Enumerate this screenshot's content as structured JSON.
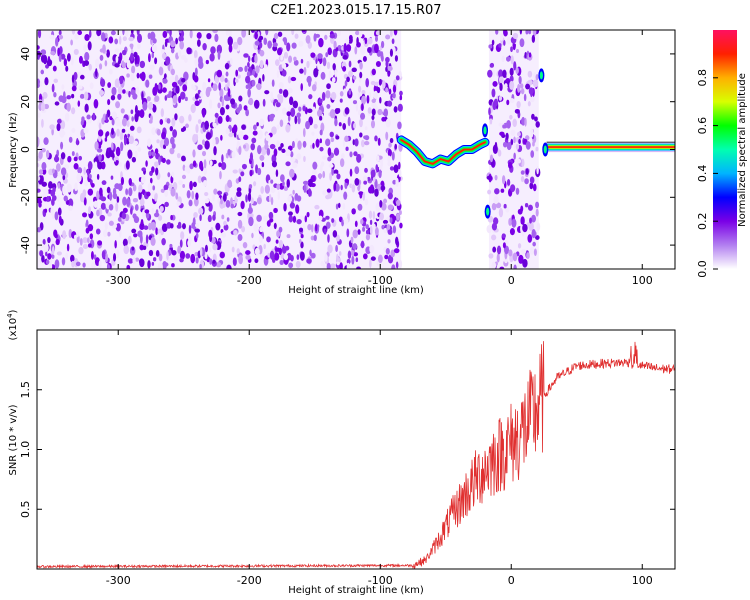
{
  "title": "C2E1.2023.015.17.15.R07",
  "chart_data": [
    {
      "type": "heatmap",
      "xlabel": "Height of straight line (km)",
      "ylabel": "Frequency (Hz)",
      "xlim": [
        -362,
        125
      ],
      "ylim": [
        -50,
        50
      ],
      "x_ticks": [
        -300,
        -200,
        -100,
        0,
        100
      ],
      "y_ticks": [
        -40,
        -20,
        0,
        20,
        40
      ],
      "x_tick_labels": [
        "-300",
        "-200",
        "-100",
        "0",
        "100"
      ],
      "y_tick_labels": [
        "-40",
        "-20",
        "0",
        "20",
        "40"
      ],
      "noise_regions": [
        [
          -362,
          -84
        ],
        [
          -17,
          21
        ]
      ],
      "signal_track": {
        "x": [
          -84,
          -78,
          -72,
          -66,
          -60,
          -54,
          -48,
          -42,
          -36,
          -30,
          -24,
          -20
        ],
        "freq": [
          4,
          2,
          -1,
          -5,
          -6,
          -4,
          -5,
          -2,
          0,
          0,
          2,
          3
        ]
      },
      "signal_spikes": [
        {
          "x": -20,
          "freq": 8
        },
        {
          "x": -18,
          "freq": -26
        },
        {
          "x": 23,
          "freq": 31
        },
        {
          "x": 26,
          "freq": 0
        }
      ],
      "carrier_band": {
        "x": [
          27,
          125
        ],
        "freq": 1
      },
      "colorbar": {
        "label": "Normalized spectral amplitude",
        "range": [
          0,
          1
        ],
        "ticks": [
          0.0,
          0.2,
          0.4,
          0.6,
          0.8
        ],
        "tick_labels": [
          "0.0",
          "0.2",
          "0.4",
          "0.6",
          "0.8"
        ],
        "colors": [
          "#ffffff",
          "#b27ff0",
          "#7a00e6",
          "#0000ff",
          "#00b4ff",
          "#00ffb0",
          "#00ff00",
          "#d8ff00",
          "#ffb000",
          "#ff2000",
          "#ff1060"
        ]
      }
    },
    {
      "type": "line",
      "xlabel": "Height of straight line (km)",
      "ylabel": "SNR (10 * v/v)",
      "y_scale_label": "(x10",
      "y_scale_exponent": "4",
      "xlim": [
        -362,
        125
      ],
      "ylim": [
        0,
        2.0
      ],
      "x_ticks": [
        -300,
        -200,
        -100,
        0,
        100
      ],
      "y_ticks": [
        0.5,
        1.0,
        1.5
      ],
      "x_tick_labels": [
        "-300",
        "-200",
        "-100",
        "0",
        "100"
      ],
      "y_tick_labels": [
        "0.5",
        "1.0",
        "1.5"
      ],
      "series_color": "#e03030",
      "trend": {
        "x": [
          -362,
          -75,
          -65,
          -55,
          -45,
          -35,
          -25,
          -15,
          -5,
          5,
          15,
          25,
          35,
          50,
          70,
          90,
          100,
          110,
          125
        ],
        "y": [
          0.02,
          0.03,
          0.08,
          0.25,
          0.45,
          0.62,
          0.78,
          0.9,
          1.0,
          1.1,
          1.25,
          1.45,
          1.6,
          1.7,
          1.72,
          1.73,
          1.7,
          1.68,
          1.67
        ]
      }
    }
  ]
}
